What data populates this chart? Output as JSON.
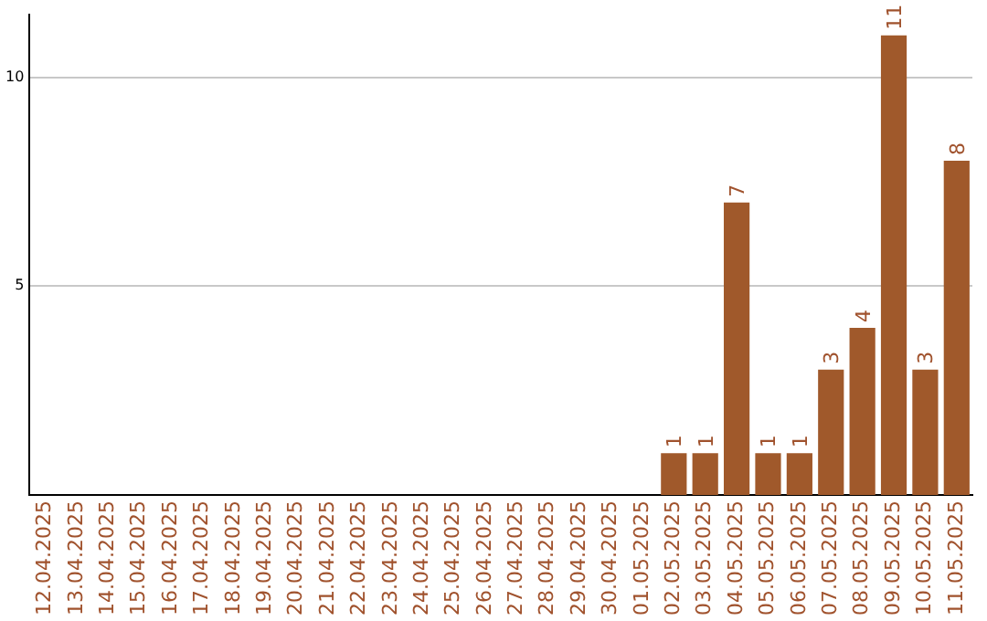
{
  "chart_data": {
    "type": "bar",
    "categories": [
      "12.04.2025",
      "13.04.2025",
      "14.04.2025",
      "15.04.2025",
      "16.04.2025",
      "17.04.2025",
      "18.04.2025",
      "19.04.2025",
      "20.04.2025",
      "21.04.2025",
      "22.04.2025",
      "23.04.2025",
      "24.04.2025",
      "25.04.2025",
      "26.04.2025",
      "27.04.2025",
      "28.04.2025",
      "29.04.2025",
      "30.04.2025",
      "01.05.2025",
      "02.05.2025",
      "03.05.2025",
      "04.05.2025",
      "05.05.2025",
      "06.05.2025",
      "07.05.2025",
      "08.05.2025",
      "09.05.2025",
      "10.05.2025",
      "11.05.2025"
    ],
    "values": [
      0,
      0,
      0,
      0,
      0,
      0,
      0,
      0,
      0,
      0,
      0,
      0,
      0,
      0,
      0,
      0,
      0,
      0,
      0,
      0,
      1,
      1,
      7,
      1,
      1,
      3,
      4,
      11,
      3,
      8
    ],
    "value_labels": [
      null,
      null,
      null,
      null,
      null,
      null,
      null,
      null,
      null,
      null,
      null,
      null,
      null,
      null,
      null,
      null,
      null,
      null,
      null,
      null,
      "1",
      "1",
      "7",
      "1",
      "1",
      "3",
      "4",
      "11",
      "3",
      "8"
    ],
    "color": "#a0592b",
    "ylim": [
      0,
      11.5
    ],
    "yticks": [
      5,
      10
    ],
    "grid": "y",
    "legend": false
  }
}
